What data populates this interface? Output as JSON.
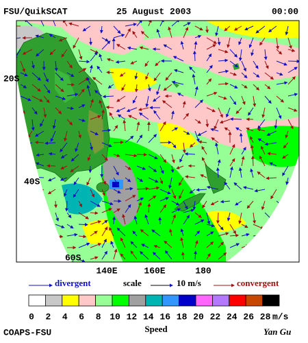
{
  "header": {
    "title": "FSU/QuikSCAT",
    "date": "25 August 2003",
    "time": "00:00"
  },
  "map": {
    "lat_labels": [
      "20S",
      "40S",
      "60S"
    ],
    "lon_labels": [
      "140E",
      "160E",
      "180"
    ]
  },
  "legend": {
    "divergent": "divergent",
    "scale": "scale",
    "scale_value": "10 m/s",
    "convergent": "convergent"
  },
  "colorbar": {
    "colors": [
      "#ffffff",
      "#c8c8c8",
      "#ffff00",
      "#ffc8c8",
      "#96ff96",
      "#00ff00",
      "#a0a0a0",
      "#00b4b4",
      "#3296ff",
      "#0000c8",
      "#ff64ff",
      "#b478ff",
      "#ff0000",
      "#c84600",
      "#000000"
    ],
    "labels": [
      0,
      2,
      4,
      6,
      8,
      10,
      12,
      14,
      16,
      18,
      20,
      22,
      24,
      26,
      28
    ],
    "unit": "m/s",
    "title": "Speed"
  },
  "footer": {
    "institution": "COAPS-FSU",
    "author": "Yan Gu"
  }
}
